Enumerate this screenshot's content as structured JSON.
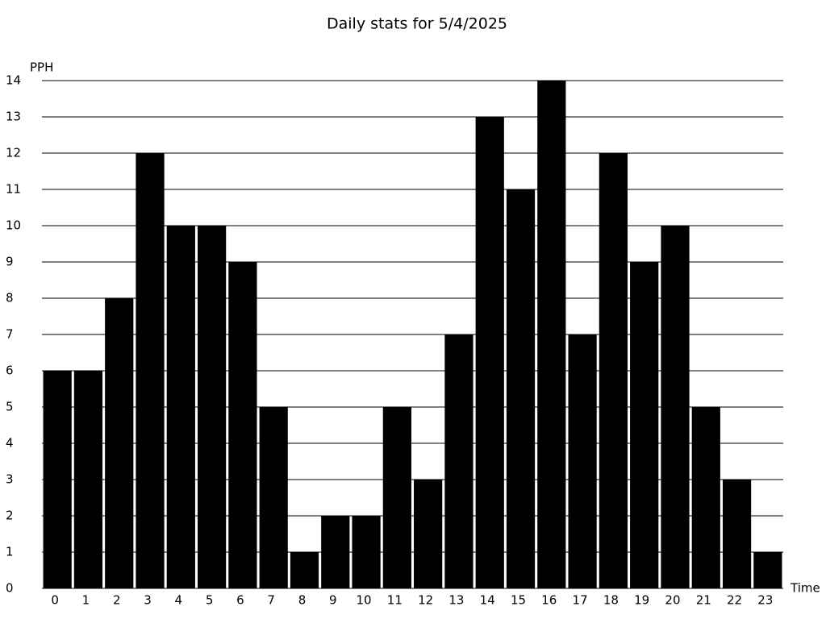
{
  "chart_data": {
    "type": "bar",
    "title": "Daily stats for 5/4/2025",
    "x_label": "Time",
    "y_label": "PPH",
    "categories": [
      "0",
      "1",
      "2",
      "3",
      "4",
      "5",
      "6",
      "7",
      "8",
      "9",
      "10",
      "11",
      "12",
      "13",
      "14",
      "15",
      "16",
      "17",
      "18",
      "19",
      "20",
      "21",
      "22",
      "23"
    ],
    "values": [
      6,
      6,
      8,
      12,
      10,
      10,
      9,
      5,
      1,
      2,
      2,
      5,
      3,
      7,
      13,
      11,
      14,
      7,
      12,
      9,
      10,
      5,
      3,
      1
    ],
    "color": "#000000",
    "ylim": [
      0,
      14
    ],
    "yticks": [
      0,
      1,
      2,
      3,
      4,
      5,
      6,
      7,
      8,
      9,
      10,
      11,
      12,
      13,
      14
    ],
    "grid": true
  }
}
